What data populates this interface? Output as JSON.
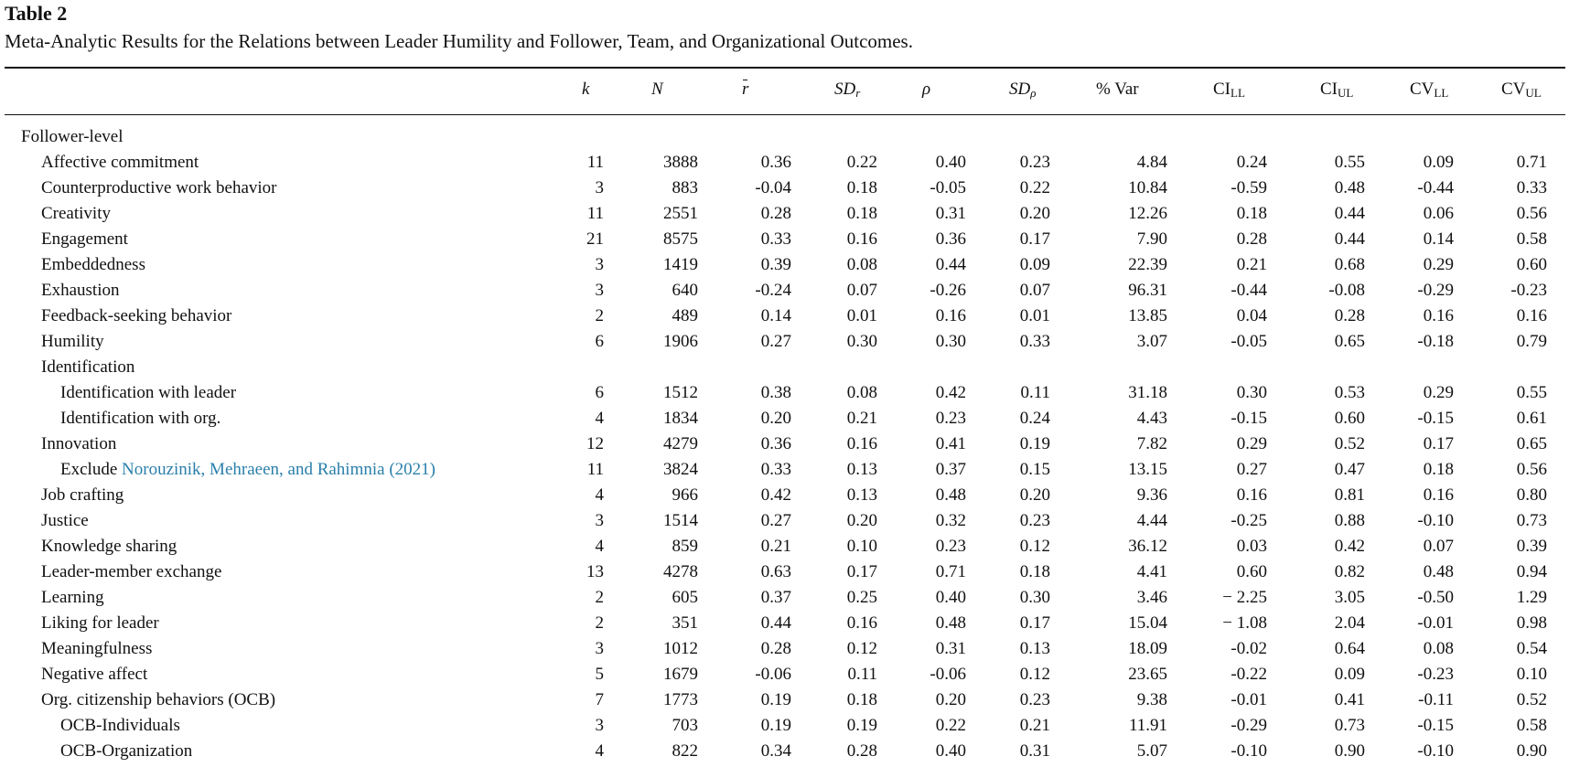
{
  "table_label": "Table 2",
  "caption": "Meta-Analytic Results for the Relations between Leader Humility and Follower, Team, and Organizational Outcomes.",
  "columns": {
    "k": "k",
    "N": "N",
    "rbar": "r",
    "sdr_main": "SD",
    "sdr_sub": "r",
    "rho": "ρ",
    "sdrho_main": "SD",
    "sdrho_sub": "ρ",
    "var": "% Var",
    "cill_main": "CI",
    "cill_sub": "LL",
    "ciul_main": "CI",
    "ciul_sub": "UL",
    "cvll_main": "CV",
    "cvll_sub": "LL",
    "cvul_main": "CV",
    "cvul_sub": "UL"
  },
  "section_label": "Follower-level",
  "rows": [
    {
      "label": "Affective commitment",
      "level": 1,
      "k": "11",
      "N": "3888",
      "r": "0.36",
      "sdr": "0.22",
      "rho": "0.40",
      "sdrho": "0.23",
      "var": "4.84",
      "cill": "0.24",
      "ciul": "0.55",
      "cvll": "0.09",
      "cvul": "0.71"
    },
    {
      "label": "Counterproductive work behavior",
      "level": 1,
      "k": "3",
      "N": "883",
      "r": "-0.04",
      "sdr": "0.18",
      "rho": "-0.05",
      "sdrho": "0.22",
      "var": "10.84",
      "cill": "-0.59",
      "ciul": "0.48",
      "cvll": "-0.44",
      "cvul": "0.33"
    },
    {
      "label": "Creativity",
      "level": 1,
      "k": "11",
      "N": "2551",
      "r": "0.28",
      "sdr": "0.18",
      "rho": "0.31",
      "sdrho": "0.20",
      "var": "12.26",
      "cill": "0.18",
      "ciul": "0.44",
      "cvll": "0.06",
      "cvul": "0.56"
    },
    {
      "label": "Engagement",
      "level": 1,
      "k": "21",
      "N": "8575",
      "r": "0.33",
      "sdr": "0.16",
      "rho": "0.36",
      "sdrho": "0.17",
      "var": "7.90",
      "cill": "0.28",
      "ciul": "0.44",
      "cvll": "0.14",
      "cvul": "0.58"
    },
    {
      "label": "Embeddedness",
      "level": 1,
      "k": "3",
      "N": "1419",
      "r": "0.39",
      "sdr": "0.08",
      "rho": "0.44",
      "sdrho": "0.09",
      "var": "22.39",
      "cill": "0.21",
      "ciul": "0.68",
      "cvll": "0.29",
      "cvul": "0.60"
    },
    {
      "label": "Exhaustion",
      "level": 1,
      "k": "3",
      "N": "640",
      "r": "-0.24",
      "sdr": "0.07",
      "rho": "-0.26",
      "sdrho": "0.07",
      "var": "96.31",
      "cill": "-0.44",
      "ciul": "-0.08",
      "cvll": "-0.29",
      "cvul": "-0.23"
    },
    {
      "label": "Feedback-seeking behavior",
      "level": 1,
      "k": "2",
      "N": "489",
      "r": "0.14",
      "sdr": "0.01",
      "rho": "0.16",
      "sdrho": "0.01",
      "var": "13.85",
      "cill": "0.04",
      "ciul": "0.28",
      "cvll": "0.16",
      "cvul": "0.16"
    },
    {
      "label": "Humility",
      "level": 1,
      "k": "6",
      "N": "1906",
      "r": "0.27",
      "sdr": "0.30",
      "rho": "0.30",
      "sdrho": "0.33",
      "var": "3.07",
      "cill": "-0.05",
      "ciul": "0.65",
      "cvll": "-0.18",
      "cvul": "0.79"
    },
    {
      "label": "Identification",
      "level": 1,
      "k": "",
      "N": "",
      "r": "",
      "sdr": "",
      "rho": "",
      "sdrho": "",
      "var": "",
      "cill": "",
      "ciul": "",
      "cvll": "",
      "cvul": ""
    },
    {
      "label": "Identification with leader",
      "level": 2,
      "k": "6",
      "N": "1512",
      "r": "0.38",
      "sdr": "0.08",
      "rho": "0.42",
      "sdrho": "0.11",
      "var": "31.18",
      "cill": "0.30",
      "ciul": "0.53",
      "cvll": "0.29",
      "cvul": "0.55"
    },
    {
      "label": "Identification with org.",
      "level": 2,
      "k": "4",
      "N": "1834",
      "r": "0.20",
      "sdr": "0.21",
      "rho": "0.23",
      "sdrho": "0.24",
      "var": "4.43",
      "cill": "-0.15",
      "ciul": "0.60",
      "cvll": "-0.15",
      "cvul": "0.61"
    },
    {
      "label": "Innovation",
      "level": 1,
      "k": "12",
      "N": "4279",
      "r": "0.36",
      "sdr": "0.16",
      "rho": "0.41",
      "sdrho": "0.19",
      "var": "7.82",
      "cill": "0.29",
      "ciul": "0.52",
      "cvll": "0.17",
      "cvul": "0.65"
    },
    {
      "label": "Exclude ",
      "link": "Norouzinik, Mehraeen, and Rahimnia (2021)",
      "level": 2,
      "k": "11",
      "N": "3824",
      "r": "0.33",
      "sdr": "0.13",
      "rho": "0.37",
      "sdrho": "0.15",
      "var": "13.15",
      "cill": "0.27",
      "ciul": "0.47",
      "cvll": "0.18",
      "cvul": "0.56"
    },
    {
      "label": "Job crafting",
      "level": 1,
      "k": "4",
      "N": "966",
      "r": "0.42",
      "sdr": "0.13",
      "rho": "0.48",
      "sdrho": "0.20",
      "var": "9.36",
      "cill": "0.16",
      "ciul": "0.81",
      "cvll": "0.16",
      "cvul": "0.80"
    },
    {
      "label": "Justice",
      "level": 1,
      "k": "3",
      "N": "1514",
      "r": "0.27",
      "sdr": "0.20",
      "rho": "0.32",
      "sdrho": "0.23",
      "var": "4.44",
      "cill": "-0.25",
      "ciul": "0.88",
      "cvll": "-0.10",
      "cvul": "0.73"
    },
    {
      "label": "Knowledge sharing",
      "level": 1,
      "k": "4",
      "N": "859",
      "r": "0.21",
      "sdr": "0.10",
      "rho": "0.23",
      "sdrho": "0.12",
      "var": "36.12",
      "cill": "0.03",
      "ciul": "0.42",
      "cvll": "0.07",
      "cvul": "0.39"
    },
    {
      "label": "Leader-member exchange",
      "level": 1,
      "k": "13",
      "N": "4278",
      "r": "0.63",
      "sdr": "0.17",
      "rho": "0.71",
      "sdrho": "0.18",
      "var": "4.41",
      "cill": "0.60",
      "ciul": "0.82",
      "cvll": "0.48",
      "cvul": "0.94"
    },
    {
      "label": "Learning",
      "level": 1,
      "k": "2",
      "N": "605",
      "r": "0.37",
      "sdr": "0.25",
      "rho": "0.40",
      "sdrho": "0.30",
      "var": "3.46",
      "cill": "− 2.25",
      "ciul": "3.05",
      "cvll": "-0.50",
      "cvul": "1.29"
    },
    {
      "label": "Liking for leader",
      "level": 1,
      "k": "2",
      "N": "351",
      "r": "0.44",
      "sdr": "0.16",
      "rho": "0.48",
      "sdrho": "0.17",
      "var": "15.04",
      "cill": "− 1.08",
      "ciul": "2.04",
      "cvll": "-0.01",
      "cvul": "0.98"
    },
    {
      "label": "Meaningfulness",
      "level": 1,
      "k": "3",
      "N": "1012",
      "r": "0.28",
      "sdr": "0.12",
      "rho": "0.31",
      "sdrho": "0.13",
      "var": "18.09",
      "cill": "-0.02",
      "ciul": "0.64",
      "cvll": "0.08",
      "cvul": "0.54"
    },
    {
      "label": "Negative affect",
      "level": 1,
      "k": "5",
      "N": "1679",
      "r": "-0.06",
      "sdr": "0.11",
      "rho": "-0.06",
      "sdrho": "0.12",
      "var": "23.65",
      "cill": "-0.22",
      "ciul": "0.09",
      "cvll": "-0.23",
      "cvul": "0.10"
    },
    {
      "label": "Org. citizenship behaviors (OCB)",
      "level": 1,
      "k": "7",
      "N": "1773",
      "r": "0.19",
      "sdr": "0.18",
      "rho": "0.20",
      "sdrho": "0.23",
      "var": "9.38",
      "cill": "-0.01",
      "ciul": "0.41",
      "cvll": "-0.11",
      "cvul": "0.52"
    },
    {
      "label": "OCB-Individuals",
      "level": 2,
      "k": "3",
      "N": "703",
      "r": "0.19",
      "sdr": "0.19",
      "rho": "0.22",
      "sdrho": "0.21",
      "var": "11.91",
      "cill": "-0.29",
      "ciul": "0.73",
      "cvll": "-0.15",
      "cvul": "0.58"
    },
    {
      "label": "OCB-Organization",
      "level": 2,
      "k": "4",
      "N": "822",
      "r": "0.34",
      "sdr": "0.28",
      "rho": "0.40",
      "sdrho": "0.31",
      "var": "5.07",
      "cill": "-0.10",
      "ciul": "0.90",
      "cvll": "-0.10",
      "cvul": "0.90"
    }
  ]
}
